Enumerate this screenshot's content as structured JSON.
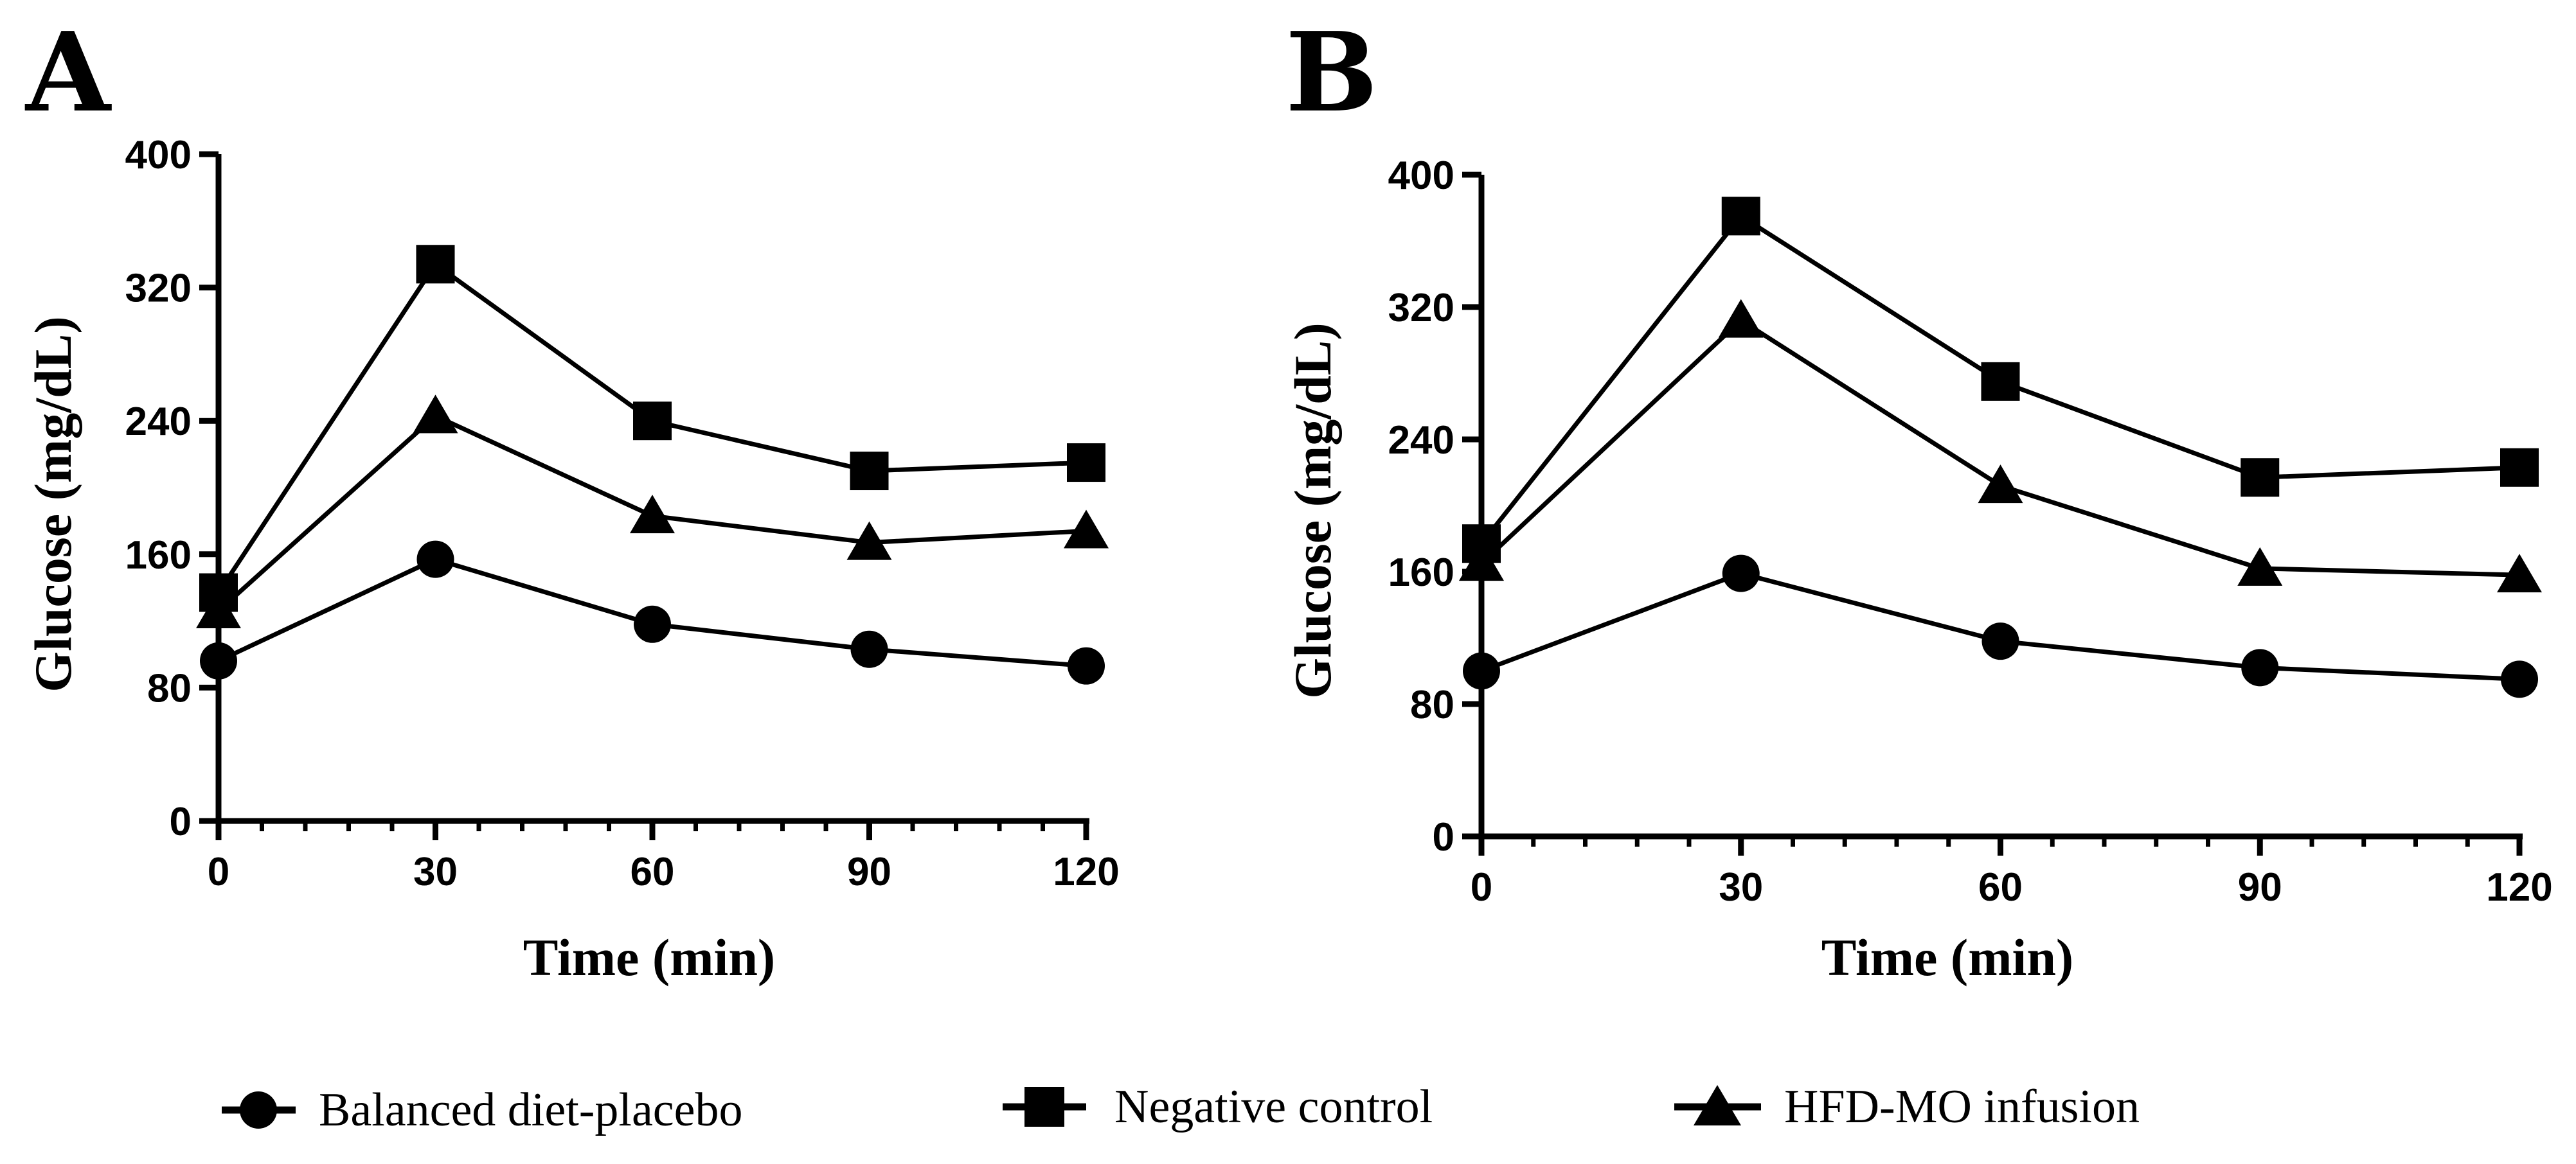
{
  "chart_data": [
    {
      "type": "line",
      "panel": "A",
      "xlabel": "Time (min)",
      "ylabel": "Glucose (mg/dL)",
      "x": [
        0,
        30,
        60,
        90,
        120
      ],
      "xticks": [
        0,
        30,
        60,
        90,
        120
      ],
      "yticks": [
        0,
        80,
        160,
        240,
        320,
        400
      ],
      "xlim": [
        0,
        120
      ],
      "ylim": [
        0,
        400
      ],
      "grid": false,
      "series": [
        {
          "name": "Balanced diet-placebo",
          "marker": "circle",
          "values": [
            96,
            157,
            118,
            103,
            93
          ]
        },
        {
          "name": "Negative control",
          "marker": "square",
          "values": [
            137,
            334,
            240,
            210,
            215
          ]
        },
        {
          "name": "HFD-MO infusion",
          "marker": "triangle",
          "values": [
            126,
            243,
            183,
            167,
            174
          ]
        }
      ]
    },
    {
      "type": "line",
      "panel": "B",
      "xlabel": "Time (min)",
      "ylabel": "Glucose (mg/dL)",
      "x": [
        0,
        30,
        60,
        90,
        120
      ],
      "xticks": [
        0,
        30,
        60,
        90,
        120
      ],
      "yticks": [
        0,
        80,
        160,
        240,
        320,
        400
      ],
      "xlim": [
        0,
        120
      ],
      "ylim": [
        0,
        400
      ],
      "grid": false,
      "series": [
        {
          "name": "Balanced diet-placebo",
          "marker": "circle",
          "values": [
            100,
            159,
            118,
            102,
            95
          ]
        },
        {
          "name": "Negative control",
          "marker": "square",
          "values": [
            177,
            375,
            275,
            217,
            223
          ]
        },
        {
          "name": "HFD-MO infusion",
          "marker": "triangle",
          "values": [
            165,
            312,
            212,
            162,
            158
          ]
        }
      ]
    }
  ],
  "legend": {
    "placement": "bottom",
    "items": [
      {
        "label": "Balanced diet-placebo",
        "marker": "circle"
      },
      {
        "label": "Negative control",
        "marker": "square"
      },
      {
        "label": "HFD-MO infusion",
        "marker": "triangle"
      }
    ]
  },
  "colors": {
    "ink": "#000000",
    "background": "#ffffff"
  }
}
